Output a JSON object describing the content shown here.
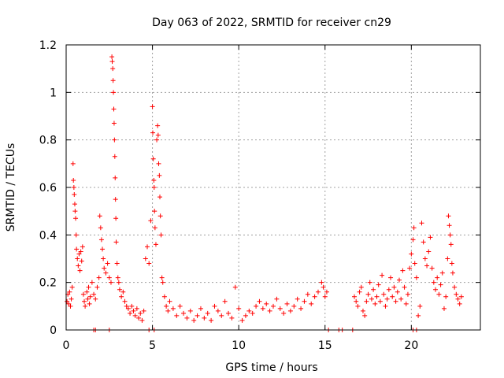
{
  "chart_data": {
    "type": "scatter",
    "title": "Day 063 of 2022, SRMTID for receiver cn29",
    "xlabel": "GPS time / hours",
    "ylabel": "SRMTID / TECUs",
    "xlim": [
      0,
      24
    ],
    "ylim": [
      0,
      1.2
    ],
    "xticks": [
      0,
      5,
      10,
      15,
      20
    ],
    "xtick_labels": [
      "0",
      "5",
      "10",
      "15",
      "20"
    ],
    "yticks": [
      0,
      0.2,
      0.4,
      0.6,
      0.8,
      1.0,
      1.2
    ],
    "ytick_labels": [
      "0",
      "0.2",
      "0.4",
      "0.6",
      "0.8",
      "1",
      "1.2"
    ],
    "grid": true,
    "marker": "+",
    "colors": {
      "series": "#ff0000",
      "grid": "#a0a0a0",
      "axis": "#000000"
    },
    "series": [
      {
        "name": "SRMTID",
        "points": [
          [
            0.05,
            0.12
          ],
          [
            0.1,
            0.15
          ],
          [
            0.15,
            0.11
          ],
          [
            0.2,
            0.16
          ],
          [
            0.25,
            0.1
          ],
          [
            0.3,
            0.13
          ],
          [
            0.35,
            0.18
          ],
          [
            0.4,
            0.7
          ],
          [
            0.42,
            0.63
          ],
          [
            0.45,
            0.6
          ],
          [
            0.47,
            0.57
          ],
          [
            0.5,
            0.53
          ],
          [
            0.52,
            0.5
          ],
          [
            0.55,
            0.47
          ],
          [
            0.58,
            0.4
          ],
          [
            0.6,
            0.34
          ],
          [
            0.65,
            0.3
          ],
          [
            0.7,
            0.27
          ],
          [
            0.75,
            0.32
          ],
          [
            0.8,
            0.25
          ],
          [
            0.85,
            0.33
          ],
          [
            0.9,
            0.29
          ],
          [
            0.95,
            0.35
          ],
          [
            1.0,
            0.15
          ],
          [
            1.05,
            0.12
          ],
          [
            1.1,
            0.1
          ],
          [
            1.2,
            0.16
          ],
          [
            1.25,
            0.13
          ],
          [
            1.3,
            0.18
          ],
          [
            1.35,
            0.11
          ],
          [
            1.4,
            0.14
          ],
          [
            1.5,
            0.2
          ],
          [
            1.6,
            0.15
          ],
          [
            1.7,
            0.13
          ],
          [
            1.8,
            0.18
          ],
          [
            1.9,
            0.22
          ],
          [
            1.95,
            0.48
          ],
          [
            2.0,
            0.43
          ],
          [
            2.05,
            0.38
          ],
          [
            2.1,
            0.34
          ],
          [
            2.15,
            0.3
          ],
          [
            2.2,
            0.26
          ],
          [
            2.3,
            0.24
          ],
          [
            2.4,
            0.28
          ],
          [
            2.5,
            0.22
          ],
          [
            2.6,
            0.2
          ],
          [
            2.65,
            1.15
          ],
          [
            2.67,
            1.13
          ],
          [
            2.7,
            1.1
          ],
          [
            2.72,
            1.05
          ],
          [
            2.74,
            1.0
          ],
          [
            2.76,
            0.93
          ],
          [
            2.78,
            0.87
          ],
          [
            2.8,
            0.8
          ],
          [
            2.82,
            0.73
          ],
          [
            2.84,
            0.64
          ],
          [
            2.86,
            0.55
          ],
          [
            2.88,
            0.47
          ],
          [
            2.9,
            0.37
          ],
          [
            2.95,
            0.28
          ],
          [
            3.0,
            0.22
          ],
          [
            3.05,
            0.2
          ],
          [
            3.1,
            0.17
          ],
          [
            3.2,
            0.14
          ],
          [
            3.3,
            0.16
          ],
          [
            3.4,
            0.12
          ],
          [
            3.5,
            0.1
          ],
          [
            3.6,
            0.09
          ],
          [
            3.7,
            0.07
          ],
          [
            3.8,
            0.1
          ],
          [
            3.9,
            0.08
          ],
          [
            4.0,
            0.06
          ],
          [
            4.1,
            0.09
          ],
          [
            4.2,
            0.05
          ],
          [
            4.3,
            0.07
          ],
          [
            4.4,
            0.04
          ],
          [
            4.5,
            0.08
          ],
          [
            4.6,
            0.3
          ],
          [
            4.7,
            0.35
          ],
          [
            4.8,
            0.28
          ],
          [
            4.9,
            0.46
          ],
          [
            5.0,
            0.94
          ],
          [
            5.02,
            0.83
          ],
          [
            5.05,
            0.72
          ],
          [
            5.08,
            0.63
          ],
          [
            5.1,
            0.6
          ],
          [
            5.12,
            0.5
          ],
          [
            5.15,
            0.43
          ],
          [
            5.2,
            0.36
          ],
          [
            5.25,
            0.8
          ],
          [
            5.3,
            0.86
          ],
          [
            5.33,
            0.82
          ],
          [
            5.36,
            0.7
          ],
          [
            5.4,
            0.65
          ],
          [
            5.43,
            0.56
          ],
          [
            5.46,
            0.48
          ],
          [
            5.5,
            0.4
          ],
          [
            5.55,
            0.22
          ],
          [
            5.6,
            0.2
          ],
          [
            5.7,
            0.14
          ],
          [
            5.8,
            0.1
          ],
          [
            5.9,
            0.08
          ],
          [
            6.0,
            0.12
          ],
          [
            6.2,
            0.09
          ],
          [
            6.4,
            0.06
          ],
          [
            6.6,
            0.1
          ],
          [
            6.8,
            0.07
          ],
          [
            7.0,
            0.05
          ],
          [
            7.2,
            0.08
          ],
          [
            7.4,
            0.04
          ],
          [
            7.6,
            0.06
          ],
          [
            7.8,
            0.09
          ],
          [
            8.0,
            0.05
          ],
          [
            8.2,
            0.07
          ],
          [
            8.4,
            0.04
          ],
          [
            8.6,
            0.1
          ],
          [
            8.8,
            0.08
          ],
          [
            9.0,
            0.06
          ],
          [
            9.2,
            0.12
          ],
          [
            9.4,
            0.07
          ],
          [
            9.6,
            0.05
          ],
          [
            9.8,
            0.18
          ],
          [
            10.0,
            0.09
          ],
          [
            10.2,
            0.04
          ],
          [
            10.4,
            0.06
          ],
          [
            10.6,
            0.08
          ],
          [
            10.8,
            0.07
          ],
          [
            11.0,
            0.1
          ],
          [
            11.2,
            0.12
          ],
          [
            11.4,
            0.09
          ],
          [
            11.6,
            0.11
          ],
          [
            11.8,
            0.08
          ],
          [
            12.0,
            0.1
          ],
          [
            12.2,
            0.13
          ],
          [
            12.4,
            0.09
          ],
          [
            12.6,
            0.07
          ],
          [
            12.8,
            0.11
          ],
          [
            13.0,
            0.08
          ],
          [
            13.2,
            0.1
          ],
          [
            13.4,
            0.13
          ],
          [
            13.6,
            0.09
          ],
          [
            13.8,
            0.12
          ],
          [
            14.0,
            0.15
          ],
          [
            14.2,
            0.11
          ],
          [
            14.4,
            0.14
          ],
          [
            14.6,
            0.16
          ],
          [
            14.8,
            0.2
          ],
          [
            14.9,
            0.18
          ],
          [
            15.0,
            0.14
          ],
          [
            15.1,
            0.16
          ],
          [
            16.7,
            0.14
          ],
          [
            16.8,
            0.12
          ],
          [
            16.9,
            0.1
          ],
          [
            17.0,
            0.16
          ],
          [
            17.1,
            0.18
          ],
          [
            17.2,
            0.08
          ],
          [
            17.3,
            0.06
          ],
          [
            17.4,
            0.12
          ],
          [
            17.5,
            0.15
          ],
          [
            17.6,
            0.2
          ],
          [
            17.7,
            0.13
          ],
          [
            17.8,
            0.17
          ],
          [
            17.9,
            0.11
          ],
          [
            18.0,
            0.14
          ],
          [
            18.1,
            0.19
          ],
          [
            18.2,
            0.12
          ],
          [
            18.3,
            0.23
          ],
          [
            18.4,
            0.15
          ],
          [
            18.5,
            0.1
          ],
          [
            18.6,
            0.13
          ],
          [
            18.7,
            0.17
          ],
          [
            18.8,
            0.22
          ],
          [
            18.9,
            0.14
          ],
          [
            19.0,
            0.18
          ],
          [
            19.1,
            0.12
          ],
          [
            19.2,
            0.16
          ],
          [
            19.3,
            0.21
          ],
          [
            19.4,
            0.13
          ],
          [
            19.5,
            0.25
          ],
          [
            19.6,
            0.18
          ],
          [
            19.7,
            0.11
          ],
          [
            19.8,
            0.15
          ],
          [
            19.9,
            0.26
          ],
          [
            20.0,
            0.32
          ],
          [
            20.1,
            0.38
          ],
          [
            20.15,
            0.43
          ],
          [
            20.2,
            0.28
          ],
          [
            20.3,
            0.22
          ],
          [
            20.4,
            0.06
          ],
          [
            20.5,
            0.1
          ],
          [
            20.6,
            0.45
          ],
          [
            20.7,
            0.37
          ],
          [
            20.8,
            0.3
          ],
          [
            20.9,
            0.27
          ],
          [
            21.0,
            0.33
          ],
          [
            21.1,
            0.39
          ],
          [
            21.2,
            0.26
          ],
          [
            21.3,
            0.2
          ],
          [
            21.4,
            0.17
          ],
          [
            21.5,
            0.22
          ],
          [
            21.6,
            0.15
          ],
          [
            21.7,
            0.19
          ],
          [
            21.8,
            0.24
          ],
          [
            21.9,
            0.09
          ],
          [
            22.0,
            0.14
          ],
          [
            22.1,
            0.3
          ],
          [
            22.15,
            0.48
          ],
          [
            22.2,
            0.44
          ],
          [
            22.25,
            0.4
          ],
          [
            22.3,
            0.36
          ],
          [
            22.35,
            0.28
          ],
          [
            22.4,
            0.24
          ],
          [
            22.5,
            0.18
          ],
          [
            22.6,
            0.15
          ],
          [
            22.7,
            0.13
          ],
          [
            22.8,
            0.11
          ],
          [
            22.9,
            0.14
          ]
        ],
        "zero_points": [
          1.6,
          1.7,
          2.5,
          4.8,
          5.1,
          15.2,
          15.8,
          16.0,
          16.6,
          20.1,
          20.3
        ]
      }
    ]
  }
}
